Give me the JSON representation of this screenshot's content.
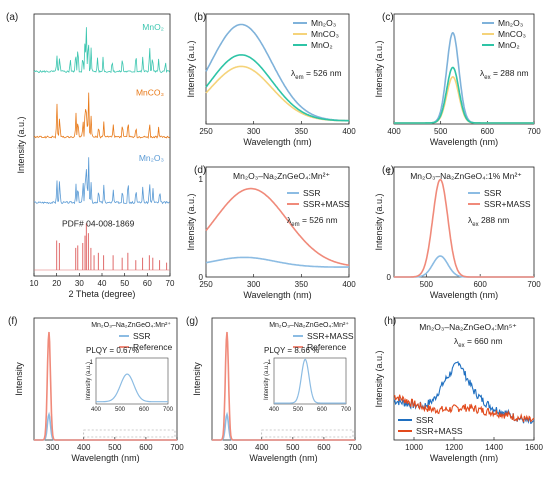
{
  "chart_data": [
    {
      "id": "a",
      "type": "bar",
      "panel_label": "(a)",
      "xlabel": "2 Theta (degree)",
      "ylabel": "Intensity (a.u.)",
      "xlim": [
        10,
        70
      ],
      "xticks": [
        10,
        20,
        30,
        40,
        50,
        60,
        70
      ],
      "series": [
        {
          "name": "MnO2",
          "label": "MnO₂",
          "color": "#3cc6b0",
          "peaks": [
            [
              20.1,
              0.35
            ],
            [
              21.3,
              0.3
            ],
            [
              26.0,
              0.28
            ],
            [
              28.4,
              0.45
            ],
            [
              29.4,
              0.55
            ],
            [
              31.5,
              0.35
            ],
            [
              32.5,
              0.65
            ],
            [
              33.1,
              0.9
            ],
            [
              34.0,
              0.75
            ],
            [
              35.2,
              0.5
            ],
            [
              38.0,
              0.3
            ],
            [
              40.5,
              0.3
            ],
            [
              44.5,
              0.25
            ],
            [
              49.0,
              0.3
            ],
            [
              55.0,
              0.4
            ],
            [
              58.0,
              0.3
            ],
            [
              61.0,
              0.55
            ],
            [
              62.3,
              0.35
            ],
            [
              65.0,
              0.25
            ],
            [
              68.0,
              0.2
            ]
          ]
        },
        {
          "name": "MnCO3",
          "label": "MnCO₃",
          "color": "#e87a1a",
          "peaks": [
            [
              20.1,
              0.7
            ],
            [
              21.3,
              0.45
            ],
            [
              28.5,
              0.5
            ],
            [
              29.4,
              0.4
            ],
            [
              31.6,
              0.35
            ],
            [
              32.6,
              0.75
            ],
            [
              33.2,
              0.55
            ],
            [
              34.1,
              0.95
            ],
            [
              35.2,
              0.45
            ],
            [
              38.5,
              0.25
            ],
            [
              40.8,
              0.3
            ],
            [
              45.0,
              0.25
            ],
            [
              49.0,
              0.3
            ],
            [
              51.5,
              0.35
            ],
            [
              55.0,
              0.2
            ],
            [
              61.0,
              0.3
            ],
            [
              65.0,
              0.2
            ]
          ]
        },
        {
          "name": "Mn2O3",
          "label": "Mn₂O₃",
          "color": "#5b9bd5",
          "peaks": [
            [
              20.1,
              0.45
            ],
            [
              21.3,
              0.5
            ],
            [
              28.5,
              0.4
            ],
            [
              29.4,
              0.35
            ],
            [
              31.6,
              0.45
            ],
            [
              32.6,
              0.6
            ],
            [
              33.2,
              0.8
            ],
            [
              34.1,
              0.95
            ],
            [
              35.2,
              0.4
            ],
            [
              38.5,
              0.3
            ],
            [
              40.8,
              0.35
            ],
            [
              45.0,
              0.25
            ],
            [
              49.0,
              0.3
            ],
            [
              51.5,
              0.5
            ],
            [
              55.0,
              0.3
            ],
            [
              58.0,
              0.35
            ],
            [
              61.0,
              0.45
            ],
            [
              62.5,
              0.3
            ],
            [
              65.5,
              0.25
            ]
          ]
        },
        {
          "name": "PDF# 04-008-1869",
          "label": "PDF# 04-008-1869",
          "color": "#e06b6b",
          "peaks": [
            [
              20.0,
              0.6
            ],
            [
              21.2,
              0.55
            ],
            [
              28.4,
              0.45
            ],
            [
              29.3,
              0.5
            ],
            [
              31.5,
              0.55
            ],
            [
              32.5,
              0.7
            ],
            [
              33.1,
              0.95
            ],
            [
              34.0,
              0.75
            ],
            [
              35.1,
              0.45
            ],
            [
              36.5,
              0.3
            ],
            [
              38.4,
              0.35
            ],
            [
              40.7,
              0.3
            ],
            [
              44.9,
              0.3
            ],
            [
              48.9,
              0.25
            ],
            [
              51.4,
              0.35
            ],
            [
              54.9,
              0.2
            ],
            [
              57.9,
              0.25
            ],
            [
              60.9,
              0.3
            ],
            [
              62.4,
              0.25
            ],
            [
              65.4,
              0.2
            ],
            [
              68.5,
              0.15
            ]
          ]
        }
      ]
    },
    {
      "id": "b",
      "type": "line",
      "panel_label": "(b)",
      "xlabel": "Wavelength (nm)",
      "ylabel": "Intensity (a.u.)",
      "xlim": [
        250,
        400
      ],
      "xticks": [
        250,
        300,
        350,
        400
      ],
      "ylim": [
        0,
        1.05
      ],
      "annotation": "λ",
      "annotation_sub": "em",
      "annotation_value": " = 526 nm",
      "series": [
        {
          "name": "Mn2O3",
          "label": "Mn₂O₃",
          "color": "#7fb2da",
          "peak": 287,
          "amp": 0.92,
          "width": 32,
          "base": 0.03
        },
        {
          "name": "MnCO3",
          "label": "MnCO₃",
          "color": "#f5d37a",
          "peak": 287,
          "amp": 0.52,
          "width": 32,
          "base": 0.03
        },
        {
          "name": "MnO2",
          "label": "MnO₂",
          "color": "#2ec4a6",
          "peak": 287,
          "amp": 0.63,
          "width": 32,
          "base": 0.03
        }
      ]
    },
    {
      "id": "c",
      "type": "line",
      "panel_label": "(c)",
      "xlabel": "Wavelength (nm)",
      "ylabel": "Intensity (a.u.)",
      "xlim": [
        400,
        700
      ],
      "xticks": [
        400,
        500,
        600,
        700
      ],
      "ylim": [
        0,
        1.05
      ],
      "annotation": "λ",
      "annotation_sub": "ex",
      "annotation_value": " = 288 nm",
      "series": [
        {
          "name": "Mn2O3",
          "label": "Mn₂O₃",
          "color": "#7fb2da",
          "peak": 526,
          "amp": 0.86,
          "width": 13,
          "base": 0.01
        },
        {
          "name": "MnCO3",
          "label": "MnCO₃",
          "color": "#f5d37a",
          "peak": 526,
          "amp": 0.44,
          "width": 13,
          "base": 0.01
        },
        {
          "name": "MnO2",
          "label": "MnO₂",
          "color": "#2ec4a6",
          "peak": 526,
          "amp": 0.53,
          "width": 13,
          "base": 0.01
        }
      ]
    },
    {
      "id": "d",
      "type": "line",
      "panel_label": "(d)",
      "title": "Mn₂O₃–Na₂ZnGeO₄:Mn²⁺",
      "xlabel": "Wavelength (nm)",
      "ylabel": "Intensity (a.u.)",
      "xlim": [
        250,
        400
      ],
      "xticks": [
        250,
        300,
        350,
        400
      ],
      "ylim": [
        0,
        1.12
      ],
      "yticks": [
        0,
        1
      ],
      "annotation": "λ",
      "annotation_sub": "em",
      "annotation_value": " = 526 nm",
      "series": [
        {
          "name": "SSR",
          "label": "SSR",
          "color": "#8cbce3",
          "peak": 290,
          "amp": 0.1,
          "width": 32,
          "base": 0.1
        },
        {
          "name": "SSR+MASS",
          "label": "SSR+MASS",
          "color": "#f08a7a",
          "peak": 297,
          "amp": 0.8,
          "width": 38,
          "base": 0.1
        }
      ]
    },
    {
      "id": "e",
      "type": "line",
      "panel_label": "(e)",
      "title": "Mn₂O₃–Na₂ZnGeO₄:1% Mn²⁺",
      "xlabel": "Wavelength (nm)",
      "ylabel": "Intensity (a.u.)",
      "xlim": [
        440,
        700
      ],
      "xticks": [
        500,
        600,
        700
      ],
      "ylim": [
        0,
        1.05
      ],
      "yticks": [
        0,
        1
      ],
      "annotation": "λ",
      "annotation_sub": "ex",
      "annotation_value": " 288 nm",
      "series": [
        {
          "name": "SSR",
          "label": "SSR",
          "color": "#8cbce3",
          "peak": 526,
          "amp": 0.2,
          "width": 14,
          "base": 0.0
        },
        {
          "name": "SSR+MASS",
          "label": "SSR+MASS",
          "color": "#f08a7a",
          "peak": 526,
          "amp": 0.93,
          "width": 14,
          "base": 0.0
        }
      ]
    },
    {
      "id": "f",
      "type": "line",
      "panel_label": "(f)",
      "title": "Mn₂O₃–Na₂ZnGeO₄:Mn²⁺",
      "xlabel": "Wavelength (nm)",
      "ylabel": "Intensity",
      "xlim": [
        240,
        700
      ],
      "xticks": [
        300,
        400,
        500,
        600,
        700
      ],
      "ylim": [
        0,
        1.05
      ],
      "series": [
        {
          "name": "SSR",
          "label": "SSR",
          "color": "#8cbce3",
          "peak": 288,
          "amp": 0.22,
          "width": 5,
          "base": 0.0
        },
        {
          "name": "Reference",
          "label": "Reference",
          "color": "#f08a7a",
          "peak": 288,
          "amp": 0.93,
          "width": 5,
          "base": 0.0
        }
      ],
      "inset": {
        "text": "PLQY = 0.67%",
        "ylabel": "Intensity (a.u.)",
        "ytick": "1",
        "xlim": [
          400,
          700
        ],
        "xticks": [
          400,
          500,
          600,
          700
        ],
        "series": [
          {
            "name": "SSR",
            "color": "#8cbce3",
            "peak": 530,
            "amp": 0.6,
            "width": 28,
            "base": 0.05
          }
        ]
      }
    },
    {
      "id": "g",
      "type": "line",
      "panel_label": "(g)",
      "title": "Mn₂O₃–Na₂ZnGeO₄:Mn²⁺",
      "xlabel": "Wavelength (nm)",
      "ylabel": "Intensity",
      "xlim": [
        240,
        700
      ],
      "xticks": [
        300,
        400,
        500,
        600,
        700
      ],
      "ylim": [
        0,
        1.05
      ],
      "series": [
        {
          "name": "SSR+MASS",
          "label": "SSR+MASS",
          "color": "#8cbce3",
          "peak": 288,
          "amp": 0.22,
          "width": 5,
          "base": 0.0
        },
        {
          "name": "Reference",
          "label": "Reference",
          "color": "#f08a7a",
          "peak": 288,
          "amp": 0.93,
          "width": 5,
          "base": 0.0
        }
      ],
      "inset": {
        "text": "PLQY = 8.66 %",
        "ylabel": "Intensity (a.u.)",
        "ytick": "1",
        "xlim": [
          400,
          700
        ],
        "xticks": [
          400,
          500,
          600,
          700
        ],
        "series": [
          {
            "name": "SSR+MASS",
            "color": "#8cbce3",
            "peak": 530,
            "amp": 0.95,
            "width": 16,
            "base": 0.02
          }
        ]
      }
    },
    {
      "id": "h",
      "type": "line",
      "panel_label": "(h)",
      "title": "Mn₂O₃–Na₂ZnGeO₄:Mn⁵⁺",
      "xlabel": "Wavelength (nm)",
      "ylabel": "Intensity (a.u.)",
      "xlim": [
        900,
        1600
      ],
      "xticks": [
        1000,
        1200,
        1400,
        1600
      ],
      "ylim": [
        0,
        1.05
      ],
      "annotation": "λ",
      "annotation_sub": "ex",
      "annotation_value": " = 660 nm",
      "series": [
        {
          "name": "SSR",
          "label": "SSR",
          "color": "#1f6fc0",
          "points": [
            [
              900,
              0.34
            ],
            [
              950,
              0.32
            ],
            [
              1000,
              0.3
            ],
            [
              1050,
              0.29
            ],
            [
              1100,
              0.35
            ],
            [
              1150,
              0.5
            ],
            [
              1200,
              0.62
            ],
            [
              1225,
              0.68
            ],
            [
              1250,
              0.58
            ],
            [
              1300,
              0.42
            ],
            [
              1350,
              0.33
            ],
            [
              1400,
              0.27
            ],
            [
              1450,
              0.24
            ],
            [
              1500,
              0.2
            ],
            [
              1550,
              0.17
            ],
            [
              1600,
              0.14
            ]
          ]
        },
        {
          "name": "SSR+MASS",
          "label": "SSR+MASS",
          "color": "#e24a1c",
          "points": [
            [
              900,
              0.38
            ],
            [
              950,
              0.35
            ],
            [
              1000,
              0.31
            ],
            [
              1050,
              0.28
            ],
            [
              1100,
              0.26
            ],
            [
              1150,
              0.26
            ],
            [
              1200,
              0.27
            ],
            [
              1250,
              0.28
            ],
            [
              1300,
              0.27
            ],
            [
              1350,
              0.25
            ],
            [
              1400,
              0.24
            ],
            [
              1450,
              0.22
            ],
            [
              1500,
              0.2
            ],
            [
              1550,
              0.18
            ],
            [
              1600,
              0.16
            ]
          ]
        }
      ]
    }
  ]
}
